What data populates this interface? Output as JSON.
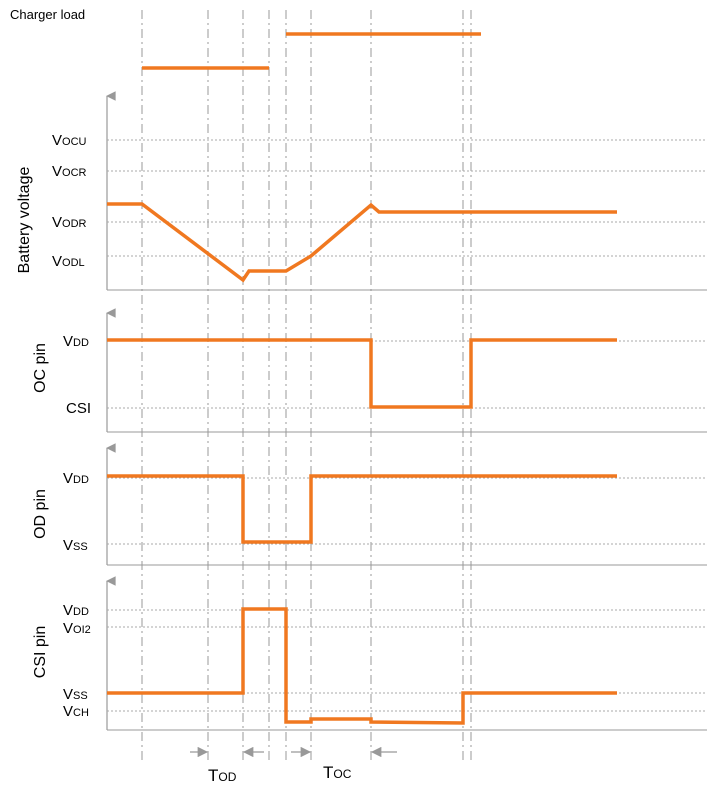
{
  "colors": {
    "signal": "#F07820",
    "axis": "#999999",
    "grid": "#AAAAAA",
    "text": "#000000"
  },
  "charger_load": {
    "label": "Charger load",
    "segments": [
      {
        "from": "t1",
        "to": "t4",
        "level": "low"
      },
      {
        "from": "t5",
        "to": "t8b",
        "level": "high"
      }
    ]
  },
  "panels": {
    "battery": {
      "title": "Battery voltage",
      "levels": [
        {
          "name": "Vocu",
          "main": "V",
          "sub": "OCU"
        },
        {
          "name": "Vocr",
          "main": "V",
          "sub": "OCR"
        },
        {
          "name": "Vodr",
          "main": "V",
          "sub": "ODR"
        },
        {
          "name": "Vodl",
          "main": "V",
          "sub": "ODL"
        }
      ]
    },
    "oc": {
      "title": "OC pin",
      "levels": [
        {
          "name": "Vdd",
          "main": "V",
          "sub": "DD"
        },
        {
          "name": "CSI",
          "main": "CSI",
          "sub": ""
        }
      ]
    },
    "od": {
      "title": "OD pin",
      "levels": [
        {
          "name": "Vdd",
          "main": "V",
          "sub": "DD"
        },
        {
          "name": "Vss",
          "main": "V",
          "sub": "SS"
        }
      ]
    },
    "csi": {
      "title": "CSI pin",
      "levels": [
        {
          "name": "Vdd",
          "main": "V",
          "sub": "DD"
        },
        {
          "name": "Voi2",
          "main": "V",
          "sub": "OI2"
        },
        {
          "name": "Vss",
          "main": "V",
          "sub": "SS"
        },
        {
          "name": "Vch",
          "main": "V",
          "sub": "CH"
        }
      ]
    }
  },
  "timing": {
    "tod": {
      "main": "T",
      "sub": "OD"
    },
    "toc": {
      "main": "T",
      "sub": "OC"
    }
  }
}
